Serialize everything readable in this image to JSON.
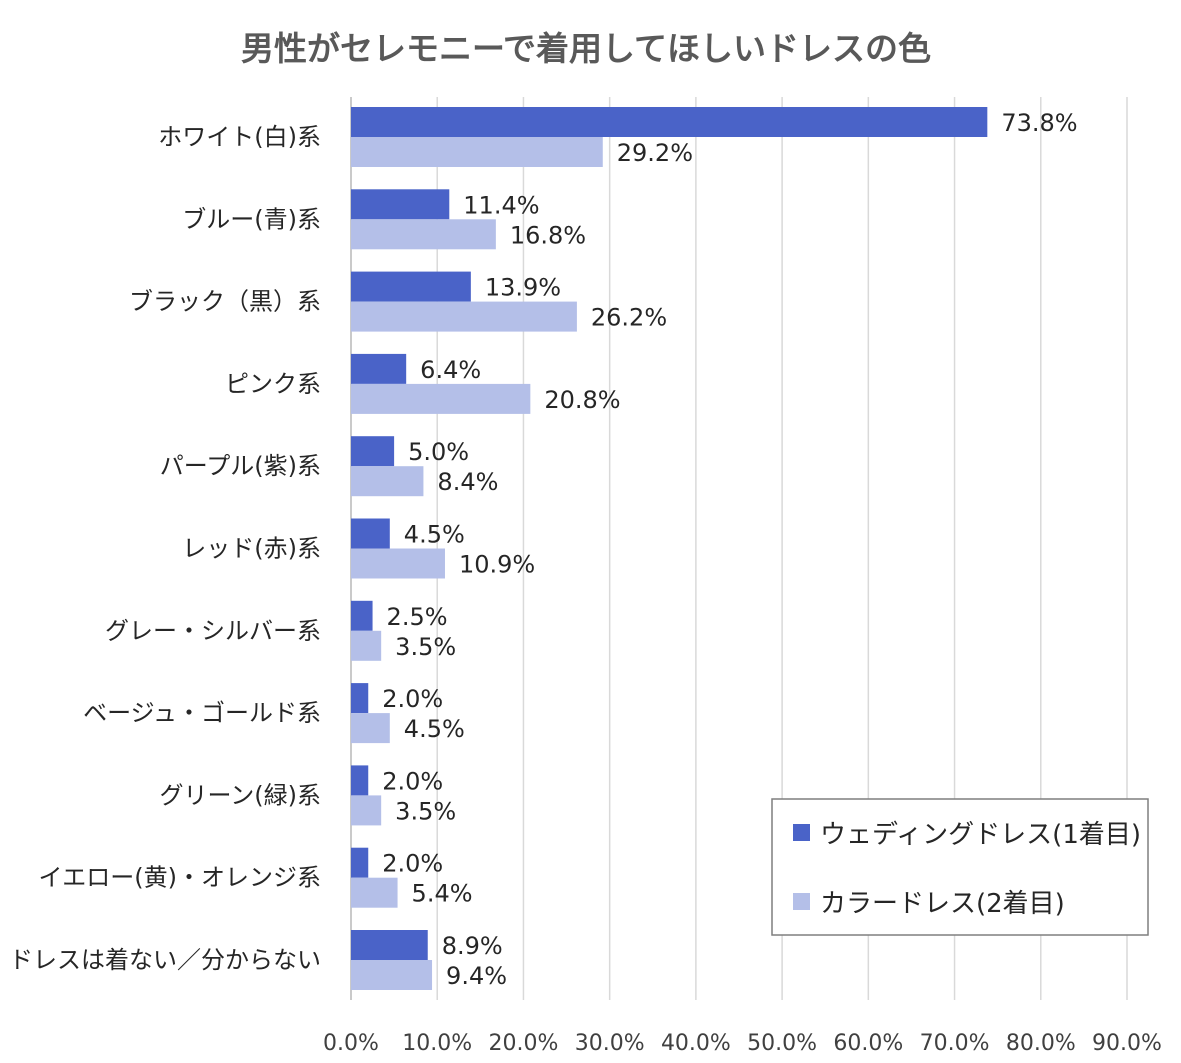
{
  "chart_data": {
    "type": "bar",
    "orientation": "horizontal",
    "title": "男性がセレモニーで着用してほしいドレスの色",
    "categories": [
      "ホワイト(白)系",
      "ブルー(青)系",
      "ブラック（黒）系",
      "ピンク系",
      "パープル(紫)系",
      "レッド(赤)系",
      "グレー・シルバー系",
      "ベージュ・ゴールド系",
      "グリーン(緑)系",
      "イエロー(黄)・オレンジ系",
      "ドレスは着ない／分からない"
    ],
    "series": [
      {
        "name": "ウェディングドレス(1着目)",
        "color": "#4a63c8",
        "values": [
          73.8,
          11.4,
          13.9,
          6.4,
          5.0,
          4.5,
          2.5,
          2.0,
          2.0,
          2.0,
          8.9
        ],
        "labels": [
          "73.8%",
          "11.4%",
          "13.9%",
          "6.4%",
          "5.0%",
          "4.5%",
          "2.5%",
          "2.0%",
          "2.0%",
          "2.0%",
          "8.9%"
        ]
      },
      {
        "name": "カラードレス(2着目)",
        "color": "#b4bfe8",
        "values": [
          29.2,
          16.8,
          26.2,
          20.8,
          8.4,
          10.9,
          3.5,
          4.5,
          3.5,
          5.4,
          9.4
        ],
        "labels": [
          "29.2%",
          "16.8%",
          "26.2%",
          "20.8%",
          "8.4%",
          "10.9%",
          "3.5%",
          "4.5%",
          "3.5%",
          "5.4%",
          "9.4%"
        ]
      }
    ],
    "xlim": [
      0,
      90
    ],
    "xticks": [
      "0.0%",
      "10.0%",
      "20.0%",
      "30.0%",
      "40.0%",
      "50.0%",
      "60.0%",
      "70.0%",
      "80.0%",
      "90.0%"
    ],
    "grid": true,
    "legend": "bottom-right",
    "xlabel": "",
    "ylabel": ""
  }
}
